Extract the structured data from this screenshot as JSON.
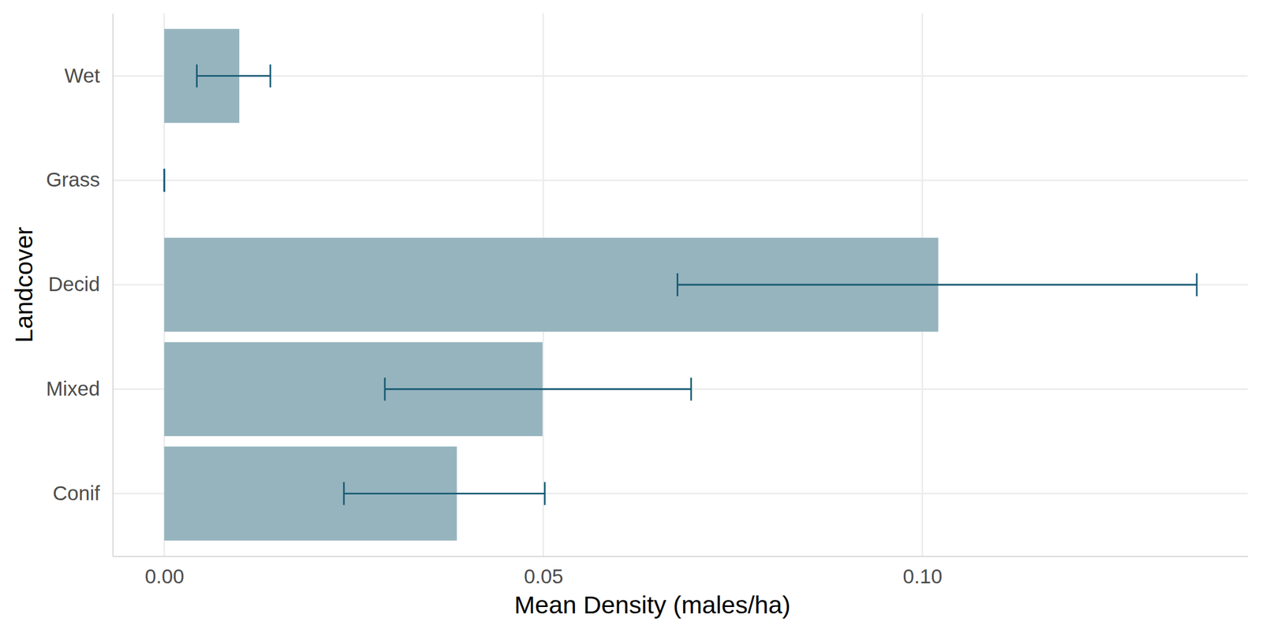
{
  "chart_data": {
    "type": "bar",
    "orientation": "horizontal",
    "categories": [
      "Conif",
      "Mixed",
      "Decid",
      "Grass",
      "Wet"
    ],
    "values": [
      0.0386,
      0.0499,
      0.1021,
      0,
      0.0099
    ],
    "error_lower": [
      0.0237,
      0.0291,
      0.0677,
      0,
      0.0043
    ],
    "error_upper": [
      0.0502,
      0.0695,
      0.1362,
      0,
      0.014
    ],
    "color": "#96b4be",
    "x_label": "Mean Density (males/ha)",
    "y_label": "Landcover",
    "xlim": [
      -0.0068,
      0.1429
    ],
    "xticks": [
      {
        "value": 0,
        "label": "0.00"
      },
      {
        "value": 0.05,
        "label": "0.05"
      },
      {
        "value": 0.1,
        "label": "0.10"
      }
    ],
    "grid": true
  }
}
